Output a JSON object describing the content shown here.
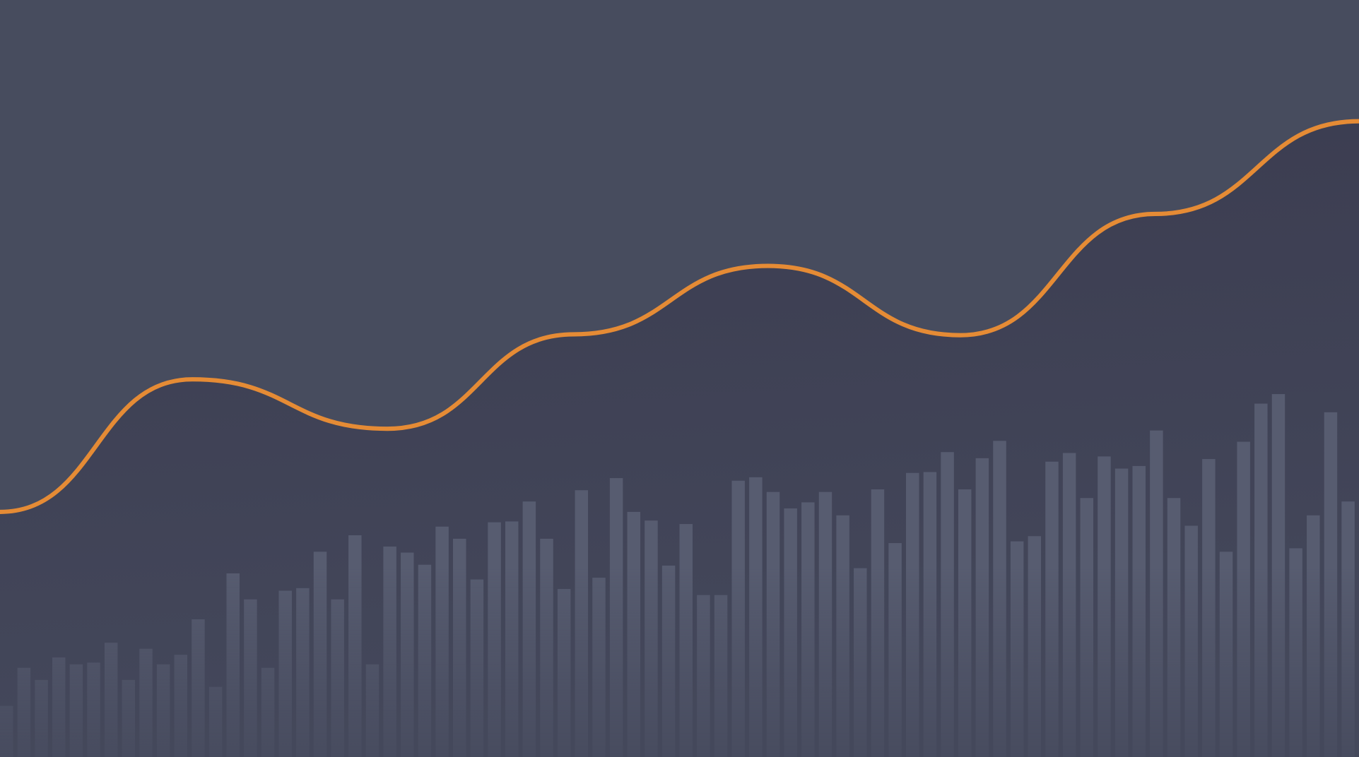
{
  "chart_data": [
    {
      "type": "bar",
      "color": "#575c70",
      "ylim": [
        0,
        874
      ],
      "categories": [
        null,
        null,
        null,
        null,
        null,
        null,
        null,
        null,
        null,
        null,
        null,
        null,
        null,
        null,
        null,
        null,
        null,
        null,
        null,
        null,
        null,
        null,
        null,
        null,
        null,
        null,
        null,
        null,
        null,
        null,
        null,
        null,
        null,
        null,
        null,
        null,
        null,
        null,
        null,
        null,
        null,
        null,
        null,
        null,
        null,
        null,
        null,
        null,
        null,
        null,
        null,
        null,
        null,
        null,
        null,
        null,
        null,
        null,
        null,
        null,
        null,
        null,
        null,
        null,
        null,
        null,
        null,
        null,
        null,
        null,
        null,
        null,
        null,
        null,
        null,
        null,
        null,
        null
      ],
      "values": [
        59,
        103,
        89,
        115,
        107,
        109,
        132,
        89,
        125,
        107,
        118,
        159,
        81,
        212,
        182,
        103,
        192,
        195,
        237,
        182,
        256,
        107,
        243,
        236,
        222,
        266,
        252,
        205,
        271,
        272,
        295,
        252,
        194,
        308,
        207,
        322,
        283,
        273,
        221,
        269,
        187,
        187,
        319,
        323,
        306,
        287,
        294,
        306,
        279,
        218,
        309,
        247,
        328,
        329,
        352,
        309,
        345,
        365,
        249,
        255,
        341,
        351,
        299,
        347,
        333,
        336,
        377,
        299,
        267,
        344,
        237,
        364,
        408,
        419,
        241,
        279,
        398,
        295
      ]
    },
    {
      "type": "line",
      "color": "#e58b35",
      "ylim": [
        0,
        874
      ],
      "xlim": [
        0,
        1568
      ],
      "x": [
        0,
        222,
        447,
        662,
        886,
        1108,
        1333,
        1568
      ],
      "values": [
        283,
        436,
        379,
        488,
        567,
        487,
        627,
        734
      ]
    }
  ]
}
